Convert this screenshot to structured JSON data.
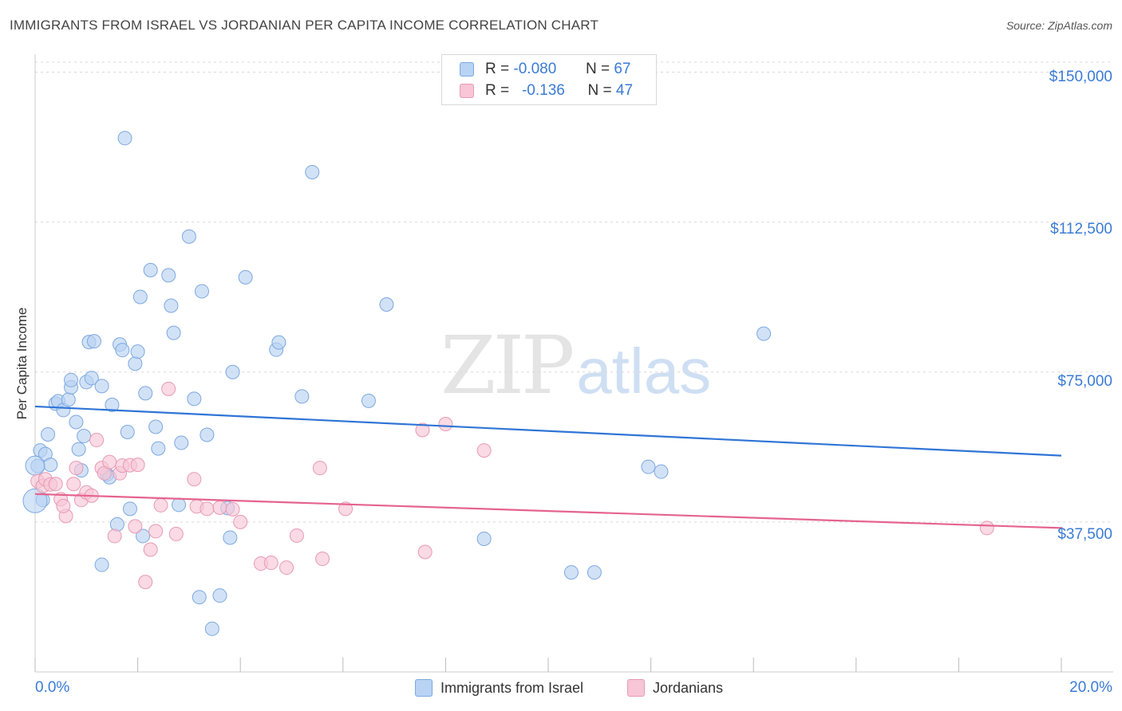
{
  "title": "IMMIGRANTS FROM ISRAEL VS JORDANIAN PER CAPITA INCOME CORRELATION CHART",
  "source": "Source: ZipAtlas.com",
  "watermark": {
    "part1": "ZIP",
    "part2": "atlas"
  },
  "colors": {
    "blue_fill": "#b8d3f3",
    "blue_stroke": "#7ea8df",
    "blue_line": "#2f75d6",
    "pink_fill": "#f8c6d6",
    "pink_stroke": "#e79ab4",
    "pink_line": "#e5638f",
    "tick_label": "#3a7bd5",
    "grid": "#d9d9d9"
  },
  "legend": {
    "rows": [
      {
        "r_label": "R =",
        "r_value": "-0.080",
        "n_label": "N =",
        "n_value": "67"
      },
      {
        "r_label": "R =",
        "r_value": "-0.136",
        "n_label": "N =",
        "n_value": "47"
      }
    ]
  },
  "bottom_legend": {
    "series1": "Immigrants from Israel",
    "series2": "Jordanians"
  },
  "chart_data": {
    "type": "scatter",
    "xlabel": "",
    "ylabel": "Per Capita Income",
    "x_range": [
      0,
      20
    ],
    "y_range": [
      0,
      152500
    ],
    "x_tick_labels": [
      "0.0%",
      "20.0%"
    ],
    "y_ticks": [
      37500,
      75000,
      112500,
      150000
    ],
    "y_tick_labels": [
      "$37,500",
      "$75,000",
      "$112,500",
      "$150,000"
    ],
    "grid": true,
    "legend_position": "top-center",
    "series": [
      {
        "name": "Immigrants from Israel",
        "color": "#b8d3f3",
        "trend": {
          "x": [
            0,
            20
          ],
          "y": [
            66400,
            54100
          ]
        },
        "points": [
          [
            0.05,
            51500
          ],
          [
            0.1,
            55400
          ],
          [
            0.15,
            43000
          ],
          [
            0.2,
            54500
          ],
          [
            0.25,
            59400
          ],
          [
            0.3,
            51800
          ],
          [
            0.4,
            67100
          ],
          [
            0.45,
            67700
          ],
          [
            0.55,
            65500
          ],
          [
            0.65,
            68100
          ],
          [
            0.7,
            71200
          ],
          [
            0.7,
            73000
          ],
          [
            0.8,
            62500
          ],
          [
            0.85,
            55700
          ],
          [
            0.9,
            50400
          ],
          [
            0.95,
            59000
          ],
          [
            1.0,
            72500
          ],
          [
            1.05,
            82500
          ],
          [
            1.1,
            73500
          ],
          [
            1.15,
            82700
          ],
          [
            1.3,
            71500
          ],
          [
            1.4,
            49400
          ],
          [
            1.45,
            48700
          ],
          [
            1.5,
            66800
          ],
          [
            1.6,
            36900
          ],
          [
            1.65,
            81900
          ],
          [
            1.7,
            80500
          ],
          [
            1.75,
            133500
          ],
          [
            1.8,
            60000
          ],
          [
            1.85,
            40800
          ],
          [
            1.95,
            77100
          ],
          [
            2.0,
            80100
          ],
          [
            2.05,
            93800
          ],
          [
            2.1,
            34000
          ],
          [
            2.15,
            69700
          ],
          [
            2.25,
            100500
          ],
          [
            2.35,
            61300
          ],
          [
            2.4,
            55900
          ],
          [
            2.6,
            99200
          ],
          [
            2.65,
            91600
          ],
          [
            2.7,
            84800
          ],
          [
            2.8,
            41800
          ],
          [
            2.85,
            57300
          ],
          [
            3.0,
            108900
          ],
          [
            3.1,
            68300
          ],
          [
            3.2,
            18700
          ],
          [
            3.25,
            95200
          ],
          [
            3.35,
            59300
          ],
          [
            3.45,
            10800
          ],
          [
            3.6,
            19100
          ],
          [
            3.75,
            41000
          ],
          [
            3.8,
            33600
          ],
          [
            3.85,
            75000
          ],
          [
            4.1,
            98700
          ],
          [
            4.7,
            80600
          ],
          [
            4.75,
            82400
          ],
          [
            5.2,
            68900
          ],
          [
            5.4,
            125000
          ],
          [
            6.5,
            67800
          ],
          [
            6.85,
            91900
          ],
          [
            8.75,
            33300
          ],
          [
            10.45,
            24900
          ],
          [
            10.9,
            24900
          ],
          [
            11.95,
            51300
          ],
          [
            12.2,
            50100
          ],
          [
            14.2,
            84600
          ],
          [
            1.3,
            26800
          ]
        ]
      },
      {
        "name": "Jordanians",
        "color": "#f8c6d6",
        "trend": {
          "x": [
            0,
            20
          ],
          "y": [
            44500,
            36000
          ]
        },
        "points": [
          [
            0.05,
            47700
          ],
          [
            0.15,
            46500
          ],
          [
            0.2,
            48200
          ],
          [
            0.3,
            46900
          ],
          [
            0.4,
            47000
          ],
          [
            0.5,
            43200
          ],
          [
            0.6,
            39000
          ],
          [
            0.75,
            47000
          ],
          [
            0.8,
            51000
          ],
          [
            0.9,
            43000
          ],
          [
            1.0,
            44900
          ],
          [
            1.1,
            44100
          ],
          [
            1.2,
            58000
          ],
          [
            1.3,
            51000
          ],
          [
            1.35,
            49700
          ],
          [
            1.45,
            52500
          ],
          [
            1.55,
            34000
          ],
          [
            1.65,
            49700
          ],
          [
            1.7,
            51600
          ],
          [
            1.85,
            51700
          ],
          [
            1.95,
            36400
          ],
          [
            2.0,
            51800
          ],
          [
            2.15,
            22500
          ],
          [
            2.25,
            30600
          ],
          [
            2.35,
            35200
          ],
          [
            2.45,
            41700
          ],
          [
            2.6,
            70800
          ],
          [
            2.75,
            34500
          ],
          [
            3.1,
            48200
          ],
          [
            3.15,
            41400
          ],
          [
            3.35,
            40800
          ],
          [
            3.6,
            41100
          ],
          [
            3.85,
            40700
          ],
          [
            4.0,
            37500
          ],
          [
            4.4,
            27100
          ],
          [
            4.6,
            27300
          ],
          [
            4.9,
            26100
          ],
          [
            5.1,
            34100
          ],
          [
            5.55,
            51000
          ],
          [
            5.6,
            28300
          ],
          [
            6.05,
            40800
          ],
          [
            7.55,
            60500
          ],
          [
            7.6,
            30000
          ],
          [
            8.0,
            62000
          ],
          [
            8.75,
            55400
          ],
          [
            18.55,
            36000
          ],
          [
            0.55,
            41500
          ]
        ]
      }
    ]
  }
}
